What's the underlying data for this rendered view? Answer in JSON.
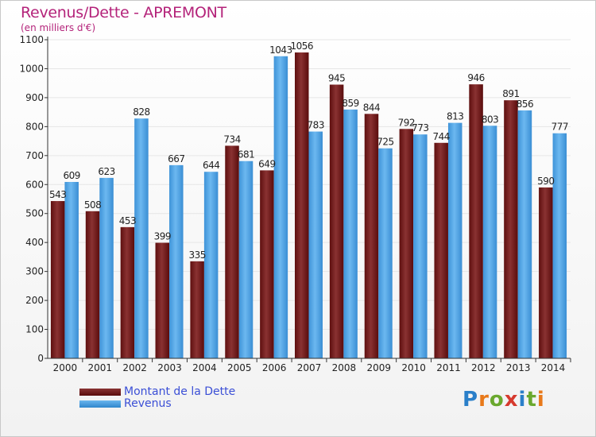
{
  "header": {
    "title": "Revenus/Dette - APREMONT",
    "subtitle": "(en milliers d'€)"
  },
  "legend": {
    "debt_label": "Montant de la Dette",
    "revenue_label": "Revenus"
  },
  "logo": {
    "text": "Proxiti",
    "letters": [
      "P",
      "r",
      "o",
      "x",
      "i",
      "t",
      "i"
    ],
    "colors": [
      "#2a7fc9",
      "#e8791a",
      "#6aa82e",
      "#d63a2e",
      "#2a7fc9",
      "#6aa82e",
      "#e8791a"
    ]
  },
  "colors": {
    "debt": "#7a1f1f",
    "revenue": "#4ba3e6",
    "title": "#b4237a",
    "legend_text": "#3b4fd6"
  },
  "chart_data": {
    "type": "bar",
    "title": "Revenus/Dette - APREMONT",
    "subtitle": "(en milliers d'€)",
    "categories": [
      "2000",
      "2001",
      "2002",
      "2003",
      "2004",
      "2005",
      "2006",
      "2007",
      "2008",
      "2009",
      "2010",
      "2011",
      "2012",
      "2013",
      "2014"
    ],
    "series": [
      {
        "name": "Montant de la Dette",
        "values": [
          543,
          508,
          453,
          399,
          335,
          734,
          649,
          1056,
          945,
          844,
          792,
          744,
          946,
          891,
          590
        ]
      },
      {
        "name": "Revenus",
        "values": [
          609,
          623,
          828,
          667,
          644,
          681,
          1043,
          783,
          859,
          725,
          773,
          813,
          803,
          856,
          777
        ]
      }
    ],
    "ylim": [
      0,
      1100
    ],
    "yticks": [
      "0",
      "100",
      "200",
      "300",
      "400",
      "500",
      "600",
      "700",
      "800",
      "900",
      "1000",
      "1100"
    ],
    "grid": true,
    "legend_position": "bottom-left"
  }
}
